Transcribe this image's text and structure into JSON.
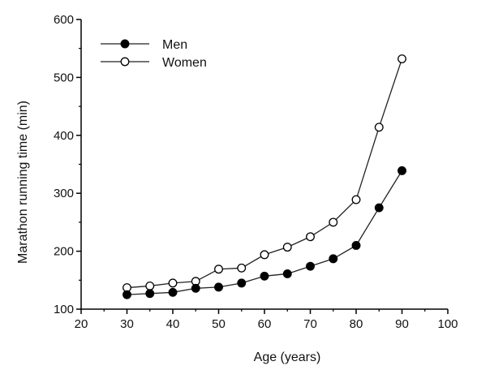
{
  "chart_data": {
    "type": "line",
    "title": "",
    "xlabel": "Age (years)",
    "ylabel": "Marathon running time (min)",
    "xlim": [
      20,
      100
    ],
    "ylim": [
      100,
      600
    ],
    "xticks": [
      20,
      30,
      40,
      50,
      60,
      70,
      80,
      90,
      100
    ],
    "yticks": [
      100,
      200,
      300,
      400,
      500,
      600
    ],
    "grid": false,
    "legend_position": "top-left",
    "x": [
      30,
      35,
      40,
      45,
      50,
      55,
      60,
      65,
      70,
      75,
      80,
      85,
      90
    ],
    "series": [
      {
        "name": "Men",
        "marker": "filled-circle",
        "values": [
          125,
          127,
          129,
          136,
          138,
          145,
          157,
          161,
          174,
          187,
          210,
          275,
          339
        ]
      },
      {
        "name": "Women",
        "marker": "open-circle",
        "values": [
          137,
          140,
          145,
          148,
          169,
          171,
          194,
          207,
          225,
          250,
          289,
          414,
          532
        ]
      }
    ]
  }
}
